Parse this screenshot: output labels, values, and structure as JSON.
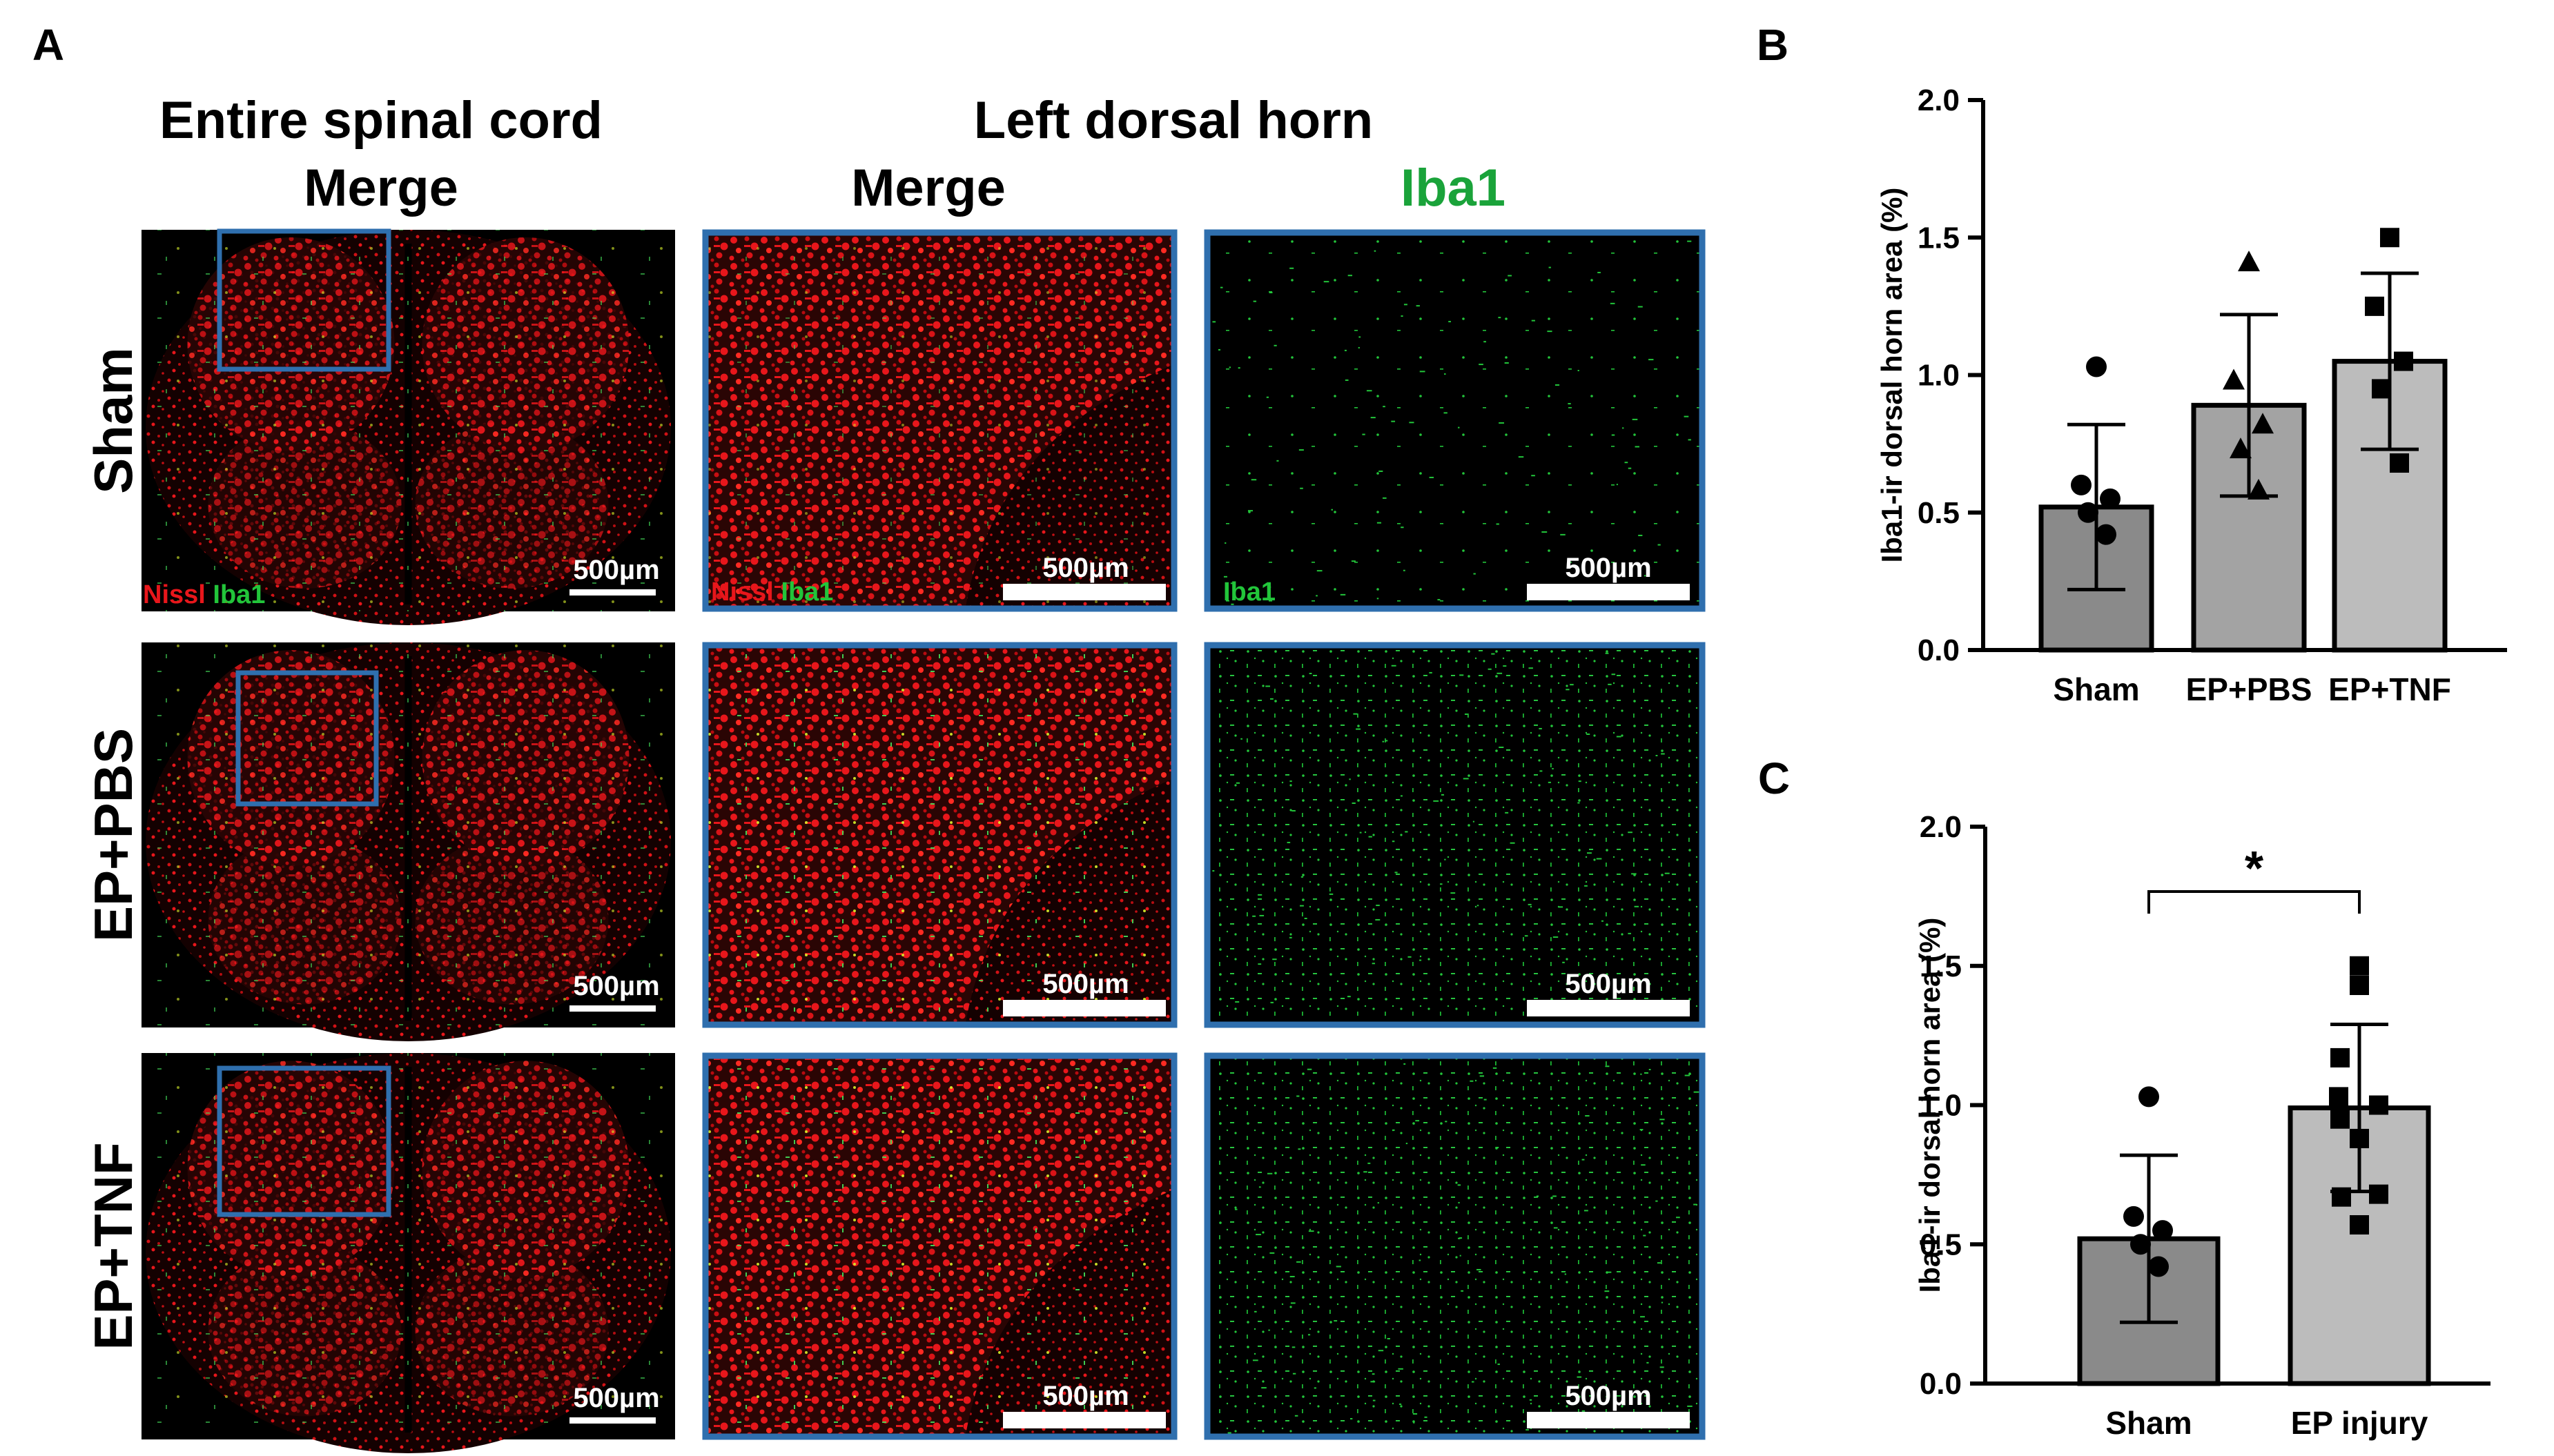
{
  "panel_letters": {
    "a": "A",
    "b": "B",
    "c": "C"
  },
  "headers": {
    "entire_line1": "Entire spinal cord",
    "entire_line2": "Merge",
    "dorsal_line1": "Left dorsal horn",
    "dorsal_merge": "Merge",
    "dorsal_iba1": "Iba1"
  },
  "rows": [
    "Sham",
    "EP+PBS",
    "EP+TNF"
  ],
  "stain": {
    "nissl": "Nissl",
    "iba1": "Iba1"
  },
  "scale_bar_label": "500µm",
  "colors": {
    "nissl": "#e8161b",
    "iba1": "#22c53a",
    "iba1_title": "#1aa33a",
    "frame": "#2f6fae",
    "bar_dark": "#8a8a8a",
    "bar_mid": "#a3a3a3",
    "bar_light": "#bcbcbc"
  },
  "chart_data": [
    {
      "panel": "B",
      "type": "bar",
      "ylabel": "Iba1-ir dorsal horn area (%)",
      "ylim": [
        0,
        2.0
      ],
      "yticks": [
        "0.0",
        "0.5",
        "1.0",
        "1.5",
        "2.0"
      ],
      "categories": [
        "Sham",
        "EP+PBS",
        "EP+TNF"
      ],
      "values": [
        0.52,
        0.89,
        1.05
      ],
      "errors": [
        0.3,
        0.33,
        0.32
      ],
      "point_markers": [
        "circle",
        "triangle",
        "square"
      ],
      "points": [
        [
          1.03,
          0.6,
          0.55,
          0.5,
          0.42
        ],
        [
          1.41,
          0.98,
          0.82,
          0.73,
          0.58
        ],
        [
          1.5,
          1.25,
          1.05,
          0.95,
          0.68
        ]
      ],
      "grid": false
    },
    {
      "panel": "C",
      "type": "bar",
      "ylabel": "Iba1-ir dorsal horn area (%)",
      "ylim": [
        0,
        2.0
      ],
      "yticks": [
        "0.0",
        "0.5",
        "1.0",
        "1.5",
        "2.0"
      ],
      "categories": [
        "Sham",
        "EP injury"
      ],
      "values": [
        0.52,
        0.99
      ],
      "errors": [
        0.3,
        0.3
      ],
      "point_markers": [
        "circle",
        "square"
      ],
      "points": [
        [
          1.03,
          0.6,
          0.55,
          0.5,
          0.42
        ],
        [
          1.5,
          1.43,
          1.17,
          1.03,
          1.0,
          0.95,
          0.88,
          0.68,
          0.67,
          0.57
        ]
      ],
      "significance": "*",
      "grid": false
    }
  ]
}
